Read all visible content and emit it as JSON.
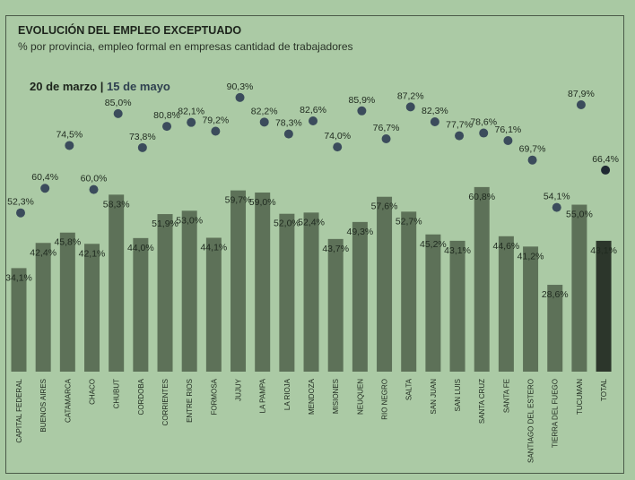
{
  "chart_data": {
    "type": "bar",
    "title": "EVOLUCIÓN DEL EMPLEO EXCEPTUADO",
    "subtitle": "% por provincia, empleo formal en empresas cantidad de trabajadores",
    "legend": {
      "series_a": "20 de marzo",
      "separator": "|",
      "series_b": "15 de mayo",
      "placement": "top-left"
    },
    "xlabel": "",
    "ylabel": "",
    "ylim": [
      0,
      100
    ],
    "grid": false,
    "categories": [
      "CAPITAL FEDERAL",
      "BUENOS AIRES",
      "CATAMARCA",
      "CHACO",
      "CHUBUT",
      "CORDOBA",
      "CORRIENTES",
      "ENTRE RIOS",
      "FORMOSA",
      "JUJUY",
      "LA PAMPA",
      "LA RIOJA",
      "MENDOZA",
      "MISIONES",
      "NEUQUEN",
      "RIO NEGRO",
      "SALTA",
      "SAN JUAN",
      "SAN LUIS",
      "SANTA CRUZ",
      "SANTA FE",
      "SANTIAGO DEL ESTERO",
      "TIERRA DEL FUEGO",
      "TUCUMAN",
      "TOTAL"
    ],
    "series": [
      {
        "name": "20 de marzo",
        "kind": "bar",
        "values": [
          34.1,
          42.4,
          45.8,
          42.1,
          58.3,
          44.0,
          51.9,
          53.0,
          44.1,
          59.7,
          59.0,
          52.0,
          52.4,
          43.7,
          49.3,
          57.6,
          52.7,
          45.2,
          43.1,
          60.8,
          44.6,
          41.2,
          28.6,
          55.0,
          43.1
        ]
      },
      {
        "name": "15 de mayo",
        "kind": "dot",
        "values": [
          52.3,
          60.4,
          74.5,
          60.0,
          85.0,
          73.8,
          80.8,
          82.1,
          79.2,
          90.3,
          82.2,
          78.3,
          82.6,
          74.0,
          85.9,
          76.7,
          87.2,
          82.3,
          77.7,
          78.6,
          76.1,
          69.7,
          54.1,
          87.9,
          66.4
        ]
      }
    ],
    "colors": {
      "bar": "#5d7158",
      "bar_total": "#2c362b",
      "dot": "#3b4c5c",
      "dot_total": "#1f2a33"
    }
  }
}
